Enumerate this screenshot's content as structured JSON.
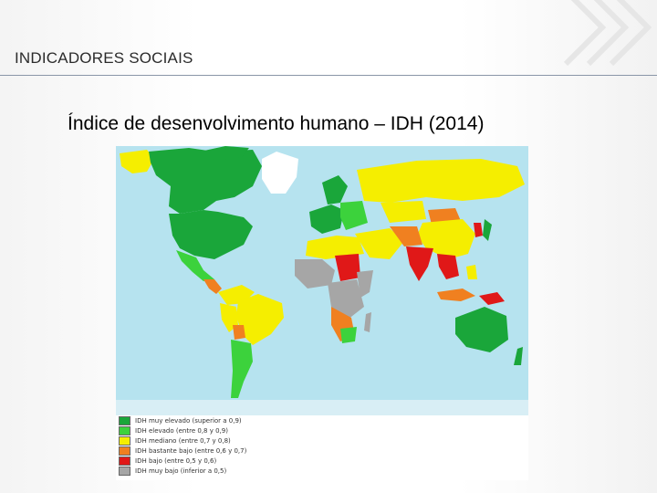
{
  "header": {
    "section_title": "INDICADORES SOCIAIS"
  },
  "slide": {
    "title": "Índice de desenvolvimento humano – IDH (2014)"
  },
  "map": {
    "colors": {
      "ocean": "#b6e3ef",
      "muy_elevado": "#1aa63a",
      "elevado": "#3cd23c",
      "mediano": "#f5ee00",
      "bastante_bajo": "#f08020",
      "bajo": "#e01818",
      "muy_bajo": "#a6a6a6",
      "sin_datos": "#ffffff"
    },
    "legend": [
      {
        "label": "IDH muy elevado (superior a 0,9)",
        "color": "#1aa63a"
      },
      {
        "label": "IDH elevado (entre 0,8 y 0,9)",
        "color": "#3cd23c"
      },
      {
        "label": "IDH mediano (entre 0,7 y 0,8)",
        "color": "#f5ee00"
      },
      {
        "label": "IDH bastante bajo (entre 0,6 y 0,7)",
        "color": "#f08020"
      },
      {
        "label": "IDH bajo (entre 0,5 y 0,6)",
        "color": "#e01818"
      },
      {
        "label": "IDH muy bajo (inferior a 0,5)",
        "color": "#a6a6a6"
      }
    ]
  }
}
